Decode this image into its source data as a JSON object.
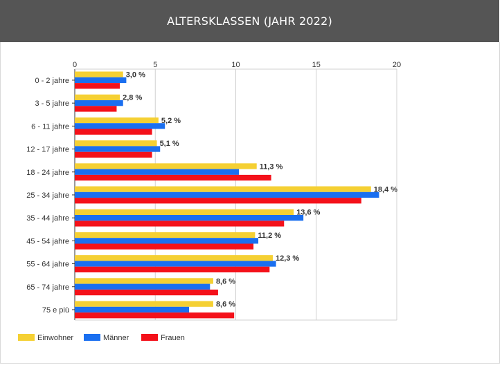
{
  "header": {
    "title": "ALTERSKLASSEN (JAHR 2022)"
  },
  "chart_data": {
    "type": "bar",
    "orientation": "horizontal",
    "title": "ALTERSKLASSEN (JAHR 2022)",
    "xlim": [
      0,
      20
    ],
    "xticks": [
      "0",
      "5",
      "10",
      "15",
      "20"
    ],
    "grid": true,
    "legend_position": "bottom-left",
    "categories": [
      "0 - 2 jahre",
      "3 - 5 jahre",
      "6 - 11 jahre",
      "12 - 17 jahre",
      "18 - 24 jahre",
      "25 - 34 jahre",
      "35 - 44 jahre",
      "45 - 54 jahre",
      "55 - 64 jahre",
      "65 - 74 jahre",
      "75 e più"
    ],
    "series": [
      {
        "name": "Einwohner",
        "color": "#f5d033",
        "values": [
          3.0,
          2.8,
          5.2,
          5.1,
          11.3,
          18.4,
          13.6,
          11.2,
          12.3,
          8.6,
          8.6
        ]
      },
      {
        "name": "Männer",
        "color": "#1a6ff0",
        "values": [
          3.2,
          3.0,
          5.6,
          5.3,
          10.2,
          18.9,
          14.2,
          11.4,
          12.5,
          8.4,
          7.1
        ]
      },
      {
        "name": "Frauen",
        "color": "#f4111a",
        "values": [
          2.8,
          2.6,
          4.8,
          4.8,
          12.2,
          17.8,
          13.0,
          11.1,
          12.1,
          8.9,
          9.9
        ]
      }
    ],
    "data_labels": [
      "3,0 %",
      "2,8 %",
      "5,2 %",
      "5,1 %",
      "11,3 %",
      "18,4 %",
      "13,6 %",
      "11,2 %",
      "12,3 %",
      "8,6 %",
      "8,6 %"
    ]
  }
}
